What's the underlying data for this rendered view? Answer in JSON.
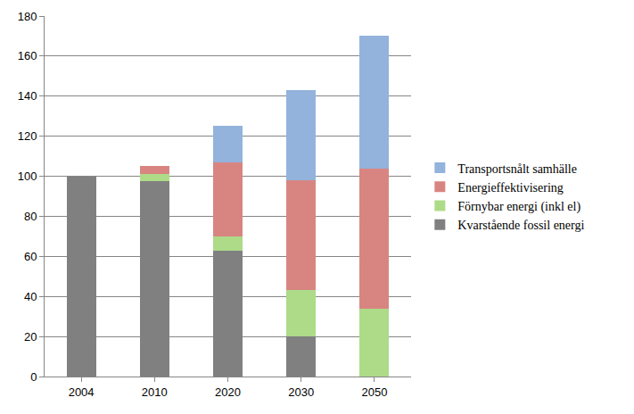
{
  "chart_data": {
    "type": "bar",
    "stacked": true,
    "grid": true,
    "legend": "right",
    "categories": [
      "2004",
      "2010",
      "2020",
      "2030",
      "2050"
    ],
    "series": [
      {
        "name": "Kvarstående fossil energi",
        "color": "#808080",
        "values": [
          100,
          97.5,
          63,
          20,
          0
        ]
      },
      {
        "name": "Förnybar energi (inkl el)",
        "color": "#addb88",
        "values": [
          0,
          3.5,
          7,
          23,
          34
        ]
      },
      {
        "name": "Energieffektivisering",
        "color": "#d88582",
        "values": [
          0,
          4,
          37,
          55,
          70
        ]
      },
      {
        "name": "Transportsnålt samhälle",
        "color": "#93b3dc",
        "values": [
          0,
          0,
          18,
          45,
          66
        ]
      }
    ],
    "ylim": [
      0,
      180
    ],
    "yticks": [
      0,
      20,
      40,
      60,
      80,
      100,
      120,
      140,
      160,
      180
    ]
  }
}
